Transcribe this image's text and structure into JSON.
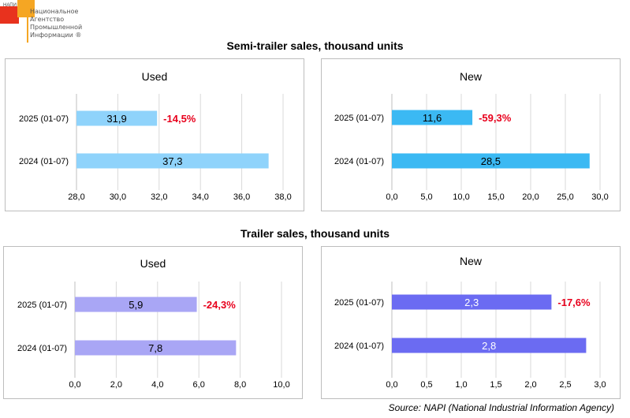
{
  "logo": {
    "abbr": "НАПИ",
    "lines": [
      "Национальное",
      "Агентство",
      "Промышленной",
      "Информации ®"
    ]
  },
  "sections": [
    {
      "title": "Semi-trailer sales, thousand units"
    },
    {
      "title": "Trailer sales, thousand units"
    }
  ],
  "source": "Source: NAPI (National Industrial Information Agency)",
  "chart_data": [
    {
      "type": "bar",
      "orientation": "horizontal",
      "title": "Used",
      "categories": [
        "2025 (01-07)",
        "2024 (01-07)"
      ],
      "values": [
        31.9,
        37.3
      ],
      "value_labels": [
        "31,9",
        "37,3"
      ],
      "change_label": "-14,5%",
      "xlim": [
        28,
        38
      ],
      "ticks": [
        28,
        30,
        32,
        34,
        36,
        38
      ],
      "tick_labels": [
        "28,0",
        "30,0",
        "32,0",
        "34,0",
        "36,0",
        "38,0"
      ],
      "bar_color": "#8fd3fb",
      "label_color": "#000000",
      "change_color": "#e8001c",
      "grid": true
    },
    {
      "type": "bar",
      "orientation": "horizontal",
      "title": "New",
      "categories": [
        "2025 (01-07)",
        "2024 (01-07)"
      ],
      "values": [
        11.6,
        28.5
      ],
      "value_labels": [
        "11,6",
        "28,5"
      ],
      "change_label": "-59,3%",
      "xlim": [
        0,
        30
      ],
      "ticks": [
        0,
        5,
        10,
        15,
        20,
        25,
        30
      ],
      "tick_labels": [
        "0,0",
        "5,0",
        "10,0",
        "15,0",
        "20,0",
        "25,0",
        "30,0"
      ],
      "bar_color": "#3bb9f3",
      "label_color": "#000000",
      "change_color": "#e8001c",
      "grid": true
    },
    {
      "type": "bar",
      "orientation": "horizontal",
      "title": "Used",
      "categories": [
        "2025 (01-07)",
        "2024 (01-07)"
      ],
      "values": [
        5.9,
        7.8
      ],
      "value_labels": [
        "5,9",
        "7,8"
      ],
      "change_label": "-24,3%",
      "xlim": [
        0,
        10
      ],
      "ticks": [
        0,
        2,
        4,
        6,
        8,
        10
      ],
      "tick_labels": [
        "0,0",
        "2,0",
        "4,0",
        "6,0",
        "8,0",
        "10,0"
      ],
      "bar_color": "#a9a6f5",
      "label_color": "#000000",
      "change_color": "#e8001c",
      "grid": true
    },
    {
      "type": "bar",
      "orientation": "horizontal",
      "title": "New",
      "categories": [
        "2025 (01-07)",
        "2024 (01-07)"
      ],
      "values": [
        2.3,
        2.8
      ],
      "value_labels": [
        "2,3",
        "2,8"
      ],
      "change_label": "-17,6%",
      "xlim": [
        0,
        3
      ],
      "ticks": [
        0,
        0.5,
        1,
        1.5,
        2,
        2.5,
        3
      ],
      "tick_labels": [
        "0,0",
        "0,5",
        "1,0",
        "1,5",
        "2,0",
        "2,5",
        "3,0"
      ],
      "bar_color": "#6b6bf2",
      "label_color": "#ffffff",
      "change_color": "#e8001c",
      "grid": true
    }
  ]
}
